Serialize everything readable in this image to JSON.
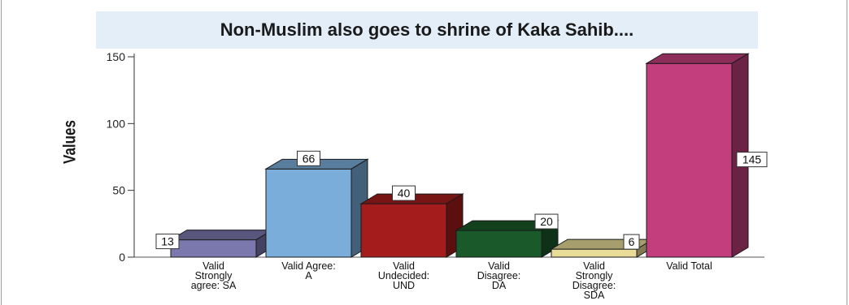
{
  "chart_data": {
    "type": "bar",
    "title": "Non-Muslim also goes to shrine of Kaka Sahib....",
    "xlabel": "",
    "ylabel": "Values",
    "ylim": [
      0,
      150
    ],
    "yticks": [
      0,
      50,
      100,
      150
    ],
    "categories": [
      "Valid Strongly agree: SA",
      "Valid Agree: A",
      "Valid Undecided: UND",
      "Valid Disagree: DA",
      "Valid Strongly Disagree: SDA",
      "Valid Total"
    ],
    "category_lines": [
      [
        "Valid",
        "Strongly",
        "agree: SA"
      ],
      [
        "Valid Agree:",
        "A"
      ],
      [
        "Valid",
        "Undecided:",
        "UND"
      ],
      [
        "Valid",
        "Disagree:",
        "DA"
      ],
      [
        "Valid",
        "Strongly",
        "Disagree:",
        "SDA"
      ],
      [
        "Valid Total"
      ]
    ],
    "values": [
      13,
      66,
      40,
      20,
      6,
      145
    ],
    "data_labels": [
      "13",
      "66",
      "40",
      "20",
      "6",
      "145"
    ],
    "colors": [
      "#7b78ae",
      "#7badda",
      "#a51c1c",
      "#1a5a2a",
      "#e8dc98",
      "#c23e7d"
    ],
    "legend": false,
    "grid": false,
    "style": "3d-bars"
  }
}
